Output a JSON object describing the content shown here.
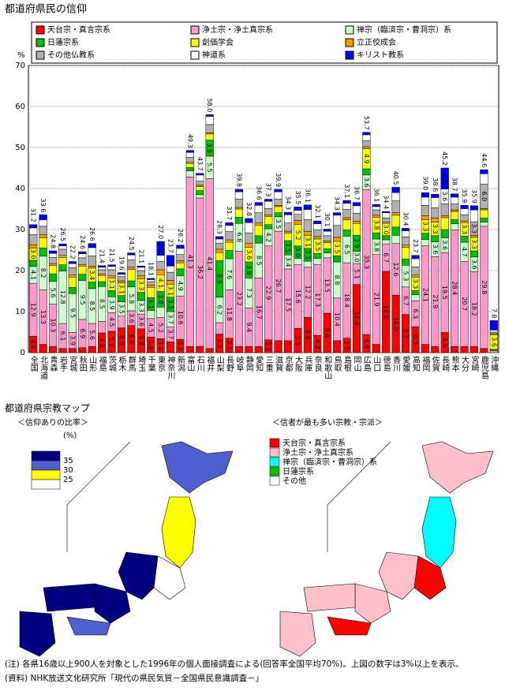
{
  "chart_data": {
    "type": "stacked_bar",
    "title": "都道府県民の信仰",
    "y_label": "%",
    "categories": [
      "全国",
      "北海道",
      "青森",
      "岩手",
      "宮城",
      "秋田",
      "山形",
      "福島",
      "茨城",
      "栃木",
      "群馬",
      "埼玉",
      "千葉",
      "東京",
      "神奈川",
      "新潟",
      "富山",
      "石川",
      "福井",
      "山梨",
      "長野",
      "岐阜",
      "静岡",
      "愛知",
      "三重",
      "滋賀",
      "京都",
      "大阪",
      "兵庫",
      "奈良",
      "和歌山",
      "鳥取",
      "島根",
      "岡山",
      "広島",
      "山口",
      "徳島",
      "香川",
      "愛媛",
      "高知",
      "福岡",
      "佐賀",
      "長崎",
      "熊本",
      "大分",
      "宮崎",
      "鹿児島",
      "沖縄"
    ],
    "total_labels": [
      "31.2",
      "33.6",
      "24.8",
      "26.5",
      "22.2",
      "24.6",
      "26.6",
      "21.4",
      "21.5",
      "19.6",
      "24.5",
      "21.1",
      "18.1",
      "27.0",
      "23.7",
      "26.2",
      "49.3",
      "43.7",
      "58.0",
      "28.3",
      "31.7",
      "39.8",
      "32.8",
      "36.6",
      "37.3",
      "39.9",
      "34.3",
      "35.5",
      "36.1",
      "32.1",
      "30.1",
      "34.3",
      "37.1",
      "36.7",
      "53.7",
      "36.1",
      "34.4",
      "40.5",
      "30.4",
      "23.7",
      "39.0",
      "38.6",
      "45.2",
      "38.7",
      "35.9",
      "35.9",
      "44.6",
      "7.8"
    ],
    "ylim": [
      0,
      70
    ],
    "yticks": [
      0,
      10,
      20,
      30,
      40,
      50,
      60,
      70
    ],
    "grid": true,
    "label_min": 3,
    "series": [
      {
        "name": "天台宗・真言宗系",
        "color": "#ff0000",
        "values": [
          4.0,
          2.0,
          1.5,
          1.0,
          1.0,
          1.2,
          1.5,
          4.8,
          5.2,
          6.0,
          6.6,
          5.8,
          3.8,
          3.4,
          2.6,
          3.2,
          1.5,
          1.5,
          1.0,
          4.5,
          3.5,
          1.5,
          1.5,
          1.5,
          3.1,
          2.9,
          2.9,
          5.9,
          8.6,
          4.2,
          9.6,
          2.9,
          3.5,
          16.6,
          4.4,
          2.0,
          19.8,
          14.0,
          9.3,
          6.3,
          2.0,
          1.5,
          4.9,
          1.5,
          1.5,
          1.5,
          1.0,
          0
        ],
        "value_labels": [
          "4.0",
          null,
          null,
          null,
          null,
          null,
          null,
          null,
          null,
          "6.0",
          null,
          null,
          null,
          null,
          null,
          null,
          null,
          null,
          null,
          null,
          null,
          null,
          null,
          null,
          null,
          null,
          null,
          null,
          null,
          null,
          null,
          null,
          null,
          null,
          null,
          null,
          null,
          "14.0",
          null,
          null,
          null,
          null,
          null,
          null,
          null,
          null,
          null,
          null
        ]
      },
      {
        "name": "浄土宗・浄土真宗系",
        "color": "#ff99cc",
        "values": [
          12.9,
          13.3,
          10.3,
          6.1,
          3.9,
          6.9,
          5.6,
          2.8,
          4.5,
          2.9,
          3.6,
          3.6,
          4.5,
          5.2,
          3.7,
          10.6,
          41.3,
          36.2,
          41.4,
          2.8,
          11.8,
          23.2,
          9.4,
          16.7,
          22.9,
          26.7,
          17.5,
          15.6,
          12.2,
          17.3,
          13.5,
          10.4,
          18.4,
          5.1,
          35.3,
          21.9,
          6.7,
          12.6,
          6.7,
          6.3,
          24.1,
          21.9,
          19.5,
          28.4,
          20.7,
          18.2,
          29.8,
          0.5
        ]
      },
      {
        "name": "禅宗（臨済宗・曹洞宗）系",
        "color": "#ccffcc",
        "values": [
          4.1,
          8.2,
          5.6,
          12.8,
          9.5,
          9.5,
          8.5,
          8.5,
          3.9,
          3.5,
          5.8,
          3.3,
          2.0,
          2.5,
          3.7,
          4.9,
          1.5,
          0.8,
          5.5,
          6.2,
          7.6,
          6.8,
          7.3,
          8.5,
          4.2,
          3.5,
          3.4,
          1.5,
          1.5,
          1.5,
          1.2,
          8.8,
          6.5,
          3.0,
          3.6,
          3.8,
          1.0,
          2.0,
          5.3,
          1.5,
          1.5,
          3.6,
          3.6,
          1.5,
          4.7,
          3.6,
          1.0,
          0
        ],
        "value_labels": [
          null,
          null,
          null,
          null,
          null,
          null,
          null,
          null,
          null,
          null,
          null,
          null,
          null,
          null,
          null,
          null,
          null,
          null,
          null,
          null,
          null,
          null,
          null,
          null,
          null,
          null,
          null,
          null,
          null,
          null,
          null,
          null,
          null,
          "3.0",
          null,
          null,
          null,
          null,
          null,
          null,
          null,
          null,
          null,
          null,
          null,
          null,
          null,
          null
        ]
      },
      {
        "name": "日蓮宗系",
        "color": "#00c000",
        "values": [
          1.5,
          2.0,
          1.8,
          1.5,
          1.5,
          1.5,
          1.6,
          1.2,
          1.5,
          1.5,
          1.5,
          2.0,
          3.1,
          3.8,
          3.5,
          1.7,
          0.8,
          1.0,
          3.9,
          8.9,
          2.0,
          1.5,
          3.9,
          1.8,
          1.0,
          1.0,
          3.5,
          3.0,
          3.1,
          1.2,
          1.0,
          1.5,
          1.5,
          3.9,
          1.5,
          1.5,
          1.0,
          2.0,
          1.5,
          1.0,
          1.5,
          1.5,
          2.0,
          1.0,
          1.5,
          1.5,
          1.0,
          0.3
        ],
        "value_labels": [
          null,
          null,
          null,
          null,
          null,
          null,
          null,
          null,
          null,
          null,
          null,
          null,
          null,
          null,
          null,
          null,
          null,
          null,
          null,
          null,
          null,
          null,
          null,
          null,
          null,
          null,
          null,
          "3.0",
          null,
          null,
          null,
          null,
          null,
          null,
          null,
          null,
          null,
          null,
          null,
          null,
          null,
          null,
          null,
          null,
          null,
          null,
          null,
          null
        ]
      },
      {
        "name": "創価学会",
        "color": "#ffff00",
        "values": [
          3.0,
          2.5,
          2.0,
          1.8,
          2.5,
          2.0,
          3.4,
          1.5,
          3.1,
          3.1,
          2.8,
          3.3,
          2.5,
          4.1,
          3.1,
          1.5,
          1.0,
          1.0,
          1.5,
          2.0,
          2.0,
          2.0,
          3.6,
          2.5,
          2.0,
          1.5,
          1.8,
          5.2,
          3.1,
          3.5,
          1.5,
          3.5,
          2.5,
          2.9,
          4.9,
          3.8,
          3.0,
          2.9,
          2.9,
          3.3,
          3.3,
          3.3,
          2.9,
          2.0,
          3.3,
          3.3,
          2.0,
          3.6
        ],
        "value_labels": [
          "3.0",
          null,
          null,
          null,
          null,
          null,
          null,
          null,
          null,
          null,
          null,
          null,
          null,
          null,
          null,
          null,
          null,
          null,
          null,
          null,
          null,
          null,
          null,
          null,
          null,
          null,
          null,
          null,
          null,
          null,
          null,
          null,
          null,
          null,
          null,
          null,
          "3.0",
          null,
          null,
          null,
          null,
          null,
          null,
          null,
          null,
          null,
          null,
          null
        ]
      },
      {
        "name": "立正佼成会",
        "color": "#ff9900",
        "values": [
          0.8,
          0.8,
          0.5,
          0.5,
          0.5,
          0.4,
          0.5,
          0.4,
          0.5,
          0.5,
          0.5,
          0.8,
          0.6,
          1.2,
          1.0,
          0.5,
          0.3,
          0.3,
          0.3,
          0.8,
          0.6,
          0.4,
          1.0,
          0.6,
          0.4,
          0.3,
          0.5,
          1.0,
          1.0,
          0.6,
          0.4,
          1.0,
          0.5,
          0.5,
          0.5,
          0.5,
          0.3,
          0.6,
          0.5,
          0.5,
          1.0,
          1.0,
          0.5,
          0.4,
          0.4,
          0.5,
          0.3,
          0.2
        ]
      },
      {
        "name": "その他仏教系",
        "color": "#b0b0b0",
        "values": [
          2.5,
          2.0,
          1.5,
          1.5,
          1.8,
          1.6,
          2.5,
          1.0,
          1.5,
          1.0,
          1.8,
          1.2,
          0.8,
          2.0,
          2.0,
          1.5,
          1.2,
          1.0,
          2.0,
          1.5,
          2.0,
          2.0,
          2.5,
          2.5,
          1.5,
          1.5,
          2.0,
          1.5,
          2.9,
          1.6,
          1.3,
          2.9,
          2.0,
          2.0,
          1.5,
          1.3,
          1.0,
          2.9,
          2.0,
          2.0,
          2.5,
          2.5,
          2.9,
          1.5,
          1.5,
          3.3,
          6.0,
          0.4
        ],
        "value_labels": [
          null,
          null,
          null,
          null,
          null,
          null,
          null,
          null,
          null,
          null,
          null,
          null,
          null,
          null,
          null,
          null,
          null,
          null,
          null,
          null,
          null,
          null,
          null,
          null,
          null,
          null,
          null,
          null,
          null,
          null,
          null,
          null,
          null,
          null,
          null,
          null,
          null,
          null,
          null,
          null,
          null,
          null,
          null,
          null,
          null,
          null,
          "6.0",
          null
        ]
      },
      {
        "name": "神道系",
        "color": "#ffffff",
        "values": [
          1.6,
          1.6,
          1.0,
          0.8,
          1.0,
          1.0,
          2.0,
          0.6,
          0.8,
          0.6,
          1.2,
          0.8,
          0.5,
          1.5,
          1.5,
          1.5,
          1.2,
          1.5,
          2.0,
          1.0,
          1.5,
          1.8,
          2.5,
          1.8,
          1.8,
          1.8,
          2.0,
          1.0,
          2.5,
          1.5,
          1.1,
          2.5,
          1.5,
          1.8,
          1.4,
          0.8,
          1.3,
          2.0,
          1.5,
          2.0,
          2.0,
          2.5,
          3.6,
          1.6,
          1.5,
          2.9,
          2.5,
          0.5
        ]
      },
      {
        "name": "キリスト教系",
        "color": "#0000ff",
        "values": [
          0.8,
          1.2,
          0.6,
          0.5,
          0.5,
          0.5,
          1.0,
          0.4,
          0.4,
          0.4,
          0.5,
          0.3,
          0.3,
          3.4,
          2.6,
          0.8,
          0.5,
          0.4,
          0.4,
          0.6,
          0.7,
          0.6,
          1.0,
          0.7,
          0.5,
          0.6,
          0.6,
          0.8,
          1.1,
          0.7,
          0.5,
          0.6,
          0.7,
          0.8,
          0.6,
          0.5,
          0.3,
          1.3,
          0.6,
          0.8,
          1.1,
          0.8,
          5.1,
          0.8,
          0.8,
          1.0,
          1.0,
          2.3
        ]
      }
    ]
  },
  "maps": {
    "title": "都道府県宗教マップ",
    "left": {
      "subtitle": "＜信仰ありの比率＞",
      "unit": "(%)",
      "legend": [
        {
          "label": "35",
          "color": "#000080"
        },
        {
          "label": "30",
          "color": "#4f5fd0"
        },
        {
          "label": "25",
          "color": "#ffff00"
        },
        {
          "label": "",
          "color": "#ffffff"
        }
      ]
    },
    "right": {
      "subtitle": "＜信者が最も多い宗教・宗派＞",
      "legend": [
        {
          "label": "天台宗・真言宗系",
          "color": "#ff0000"
        },
        {
          "label": "浄土宗・浄土真宗系",
          "color": "#ffc0cb"
        },
        {
          "label": "禅宗（臨済宗・曹洞宗）系",
          "color": "#00ffff"
        },
        {
          "label": "日蓮宗系",
          "color": "#00c000"
        },
        {
          "label": "その他",
          "color": "#ffffff"
        }
      ]
    }
  },
  "notes": [
    "(注) 各県16歳以上900人を対象とした1996年の個人面接調査による(回答率全国平均70%)。上図の数字は3%以上を表示。",
    "(資料) NHK放送文化研究所「現代の県民気質－全国県民意識調査－」"
  ]
}
